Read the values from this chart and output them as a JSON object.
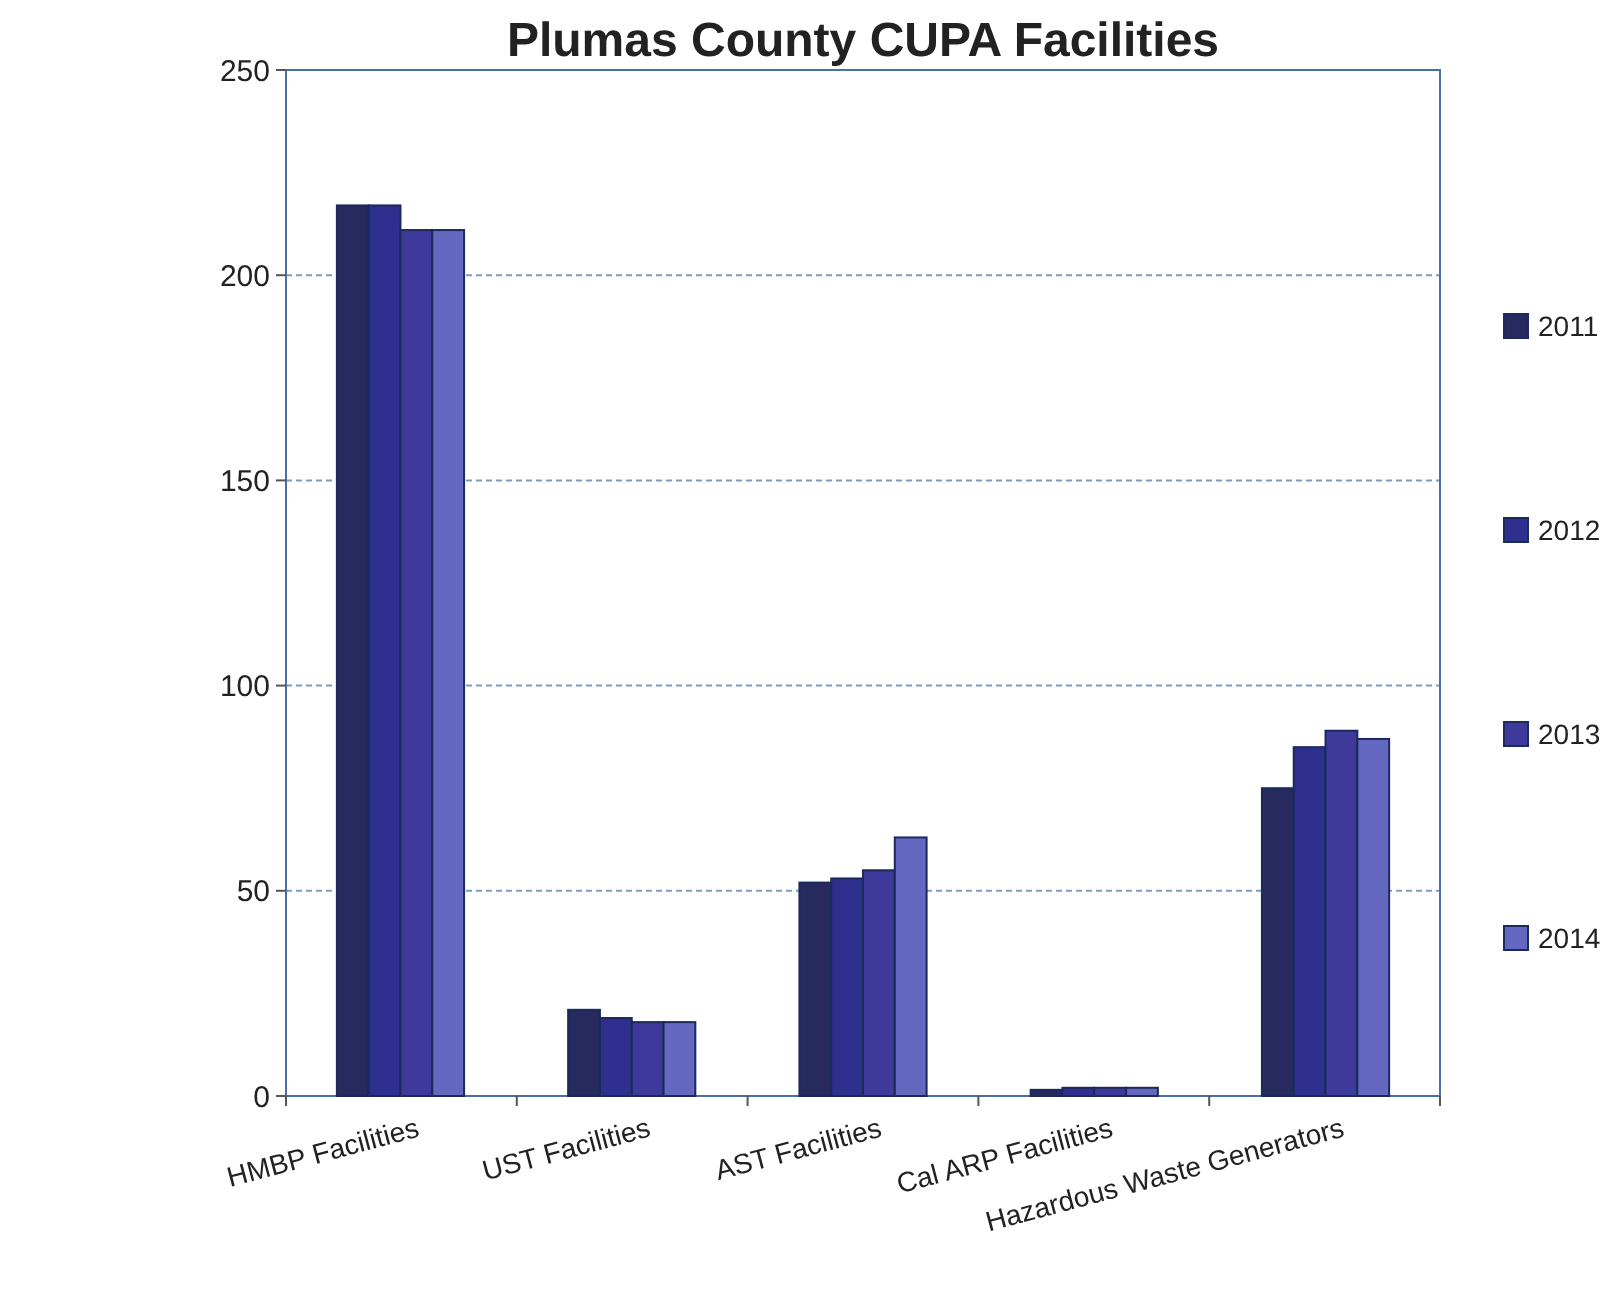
{
  "chart_data": {
    "type": "bar",
    "title": "Plumas County CUPA Facilities",
    "categories": [
      "HMBP Facilities",
      "UST Facilities",
      "AST Facilities",
      "Cal ARP Facilities",
      "Hazardous Waste Generators"
    ],
    "series": [
      {
        "name": "2011",
        "color": "#262a5e",
        "values": [
          217,
          21,
          52,
          1.5,
          75
        ]
      },
      {
        "name": "2012",
        "color": "#2e2f8e",
        "values": [
          217,
          19,
          53,
          2,
          85
        ]
      },
      {
        "name": "2013",
        "color": "#3d3a9c",
        "values": [
          211,
          18,
          55,
          2,
          89
        ]
      },
      {
        "name": "2014",
        "color": "#6468c0",
        "values": [
          211,
          18,
          63,
          2,
          87
        ]
      }
    ],
    "ylim": [
      0,
      250
    ],
    "yticks": [
      0,
      50,
      100,
      150,
      200,
      250
    ],
    "grid": "y",
    "legend": "right"
  }
}
